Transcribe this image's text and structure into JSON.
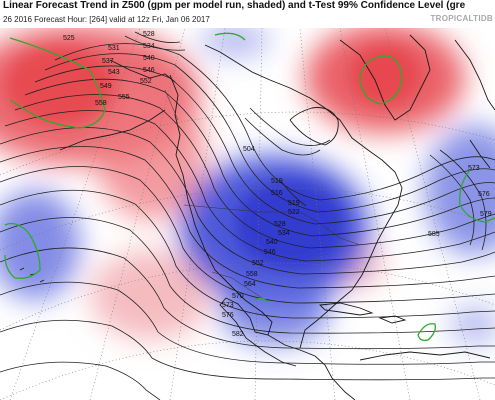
{
  "header": {
    "title": "Linear Forecast Trend in Z500 (gpm per model run, shaded) and t-Test 99% Confidence Level (gre",
    "subtitle": "26 2016   Forecast Hour: [264]   valid at 12z Fri, Jan 06 2017",
    "watermark": "TROPICALTIDB"
  },
  "contour_labels": [
    "525",
    "531",
    "537",
    "543",
    "549",
    "555",
    "528",
    "534",
    "540",
    "546",
    "552",
    "558",
    "504",
    "510",
    "516",
    "519",
    "522",
    "528",
    "534",
    "540",
    "546",
    "552",
    "558",
    "564",
    "570",
    "573",
    "576",
    "582",
    "573",
    "576",
    "579",
    "585"
  ],
  "colors": {
    "positive_trend": "#e8525a",
    "negative_trend": "#3a48d6",
    "confidence_contour": "#2eaa2e",
    "height_contour": "#222222",
    "coastline": "#1a1a1a"
  }
}
